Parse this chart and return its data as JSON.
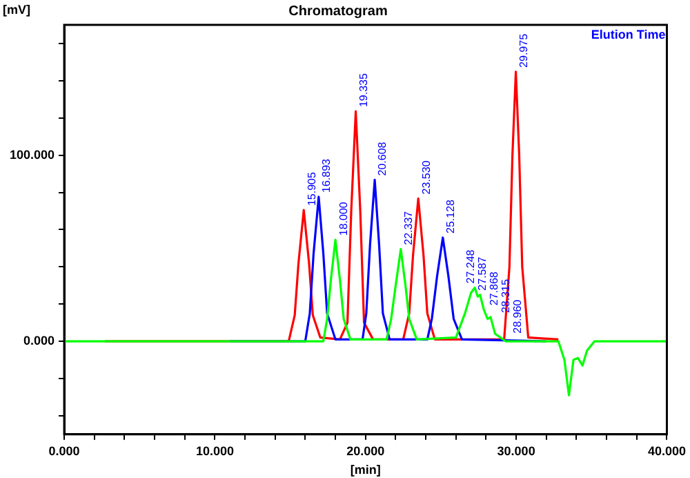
{
  "chart_data": {
    "type": "line",
    "title": "Chromatogram",
    "xlabel": "[min]",
    "ylabel": "[mV]",
    "xlim": [
      0,
      40
    ],
    "ylim": [
      -50,
      170
    ],
    "xticks": [
      {
        "value": 0,
        "label": "0.000"
      },
      {
        "value": 2,
        "label": null
      },
      {
        "value": 4,
        "label": null
      },
      {
        "value": 6,
        "label": null
      },
      {
        "value": 8,
        "label": null
      },
      {
        "value": 10,
        "label": "10.000"
      },
      {
        "value": 12,
        "label": null
      },
      {
        "value": 14,
        "label": null
      },
      {
        "value": 16,
        "label": null
      },
      {
        "value": 18,
        "label": null
      },
      {
        "value": 20,
        "label": "20.000"
      },
      {
        "value": 22,
        "label": null
      },
      {
        "value": 24,
        "label": null
      },
      {
        "value": 26,
        "label": null
      },
      {
        "value": 28,
        "label": null
      },
      {
        "value": 30,
        "label": "30.000"
      },
      {
        "value": 32,
        "label": null
      },
      {
        "value": 34,
        "label": null
      },
      {
        "value": 36,
        "label": null
      },
      {
        "value": 38,
        "label": null
      },
      {
        "value": 40,
        "label": "40.000"
      }
    ],
    "yticks": [
      {
        "value": -40,
        "label": null
      },
      {
        "value": -20,
        "label": null
      },
      {
        "value": 0,
        "label": "0.000"
      },
      {
        "value": 20,
        "label": null
      },
      {
        "value": 40,
        "label": null
      },
      {
        "value": 60,
        "label": null
      },
      {
        "value": 80,
        "label": null
      },
      {
        "value": 100,
        "label": "100.000"
      },
      {
        "value": 120,
        "label": null
      },
      {
        "value": 140,
        "label": null
      },
      {
        "value": 160,
        "label": null
      }
    ],
    "grid": false,
    "legend": false,
    "marker": "none",
    "line_style": "solid",
    "series": [
      {
        "color": "#ff0000",
        "x": [
          2.7,
          14.9,
          15.3,
          15.55,
          15.9,
          16.25,
          16.5,
          17,
          18.3,
          18.8,
          19.05,
          19.35,
          19.65,
          19.9,
          20.5,
          22.5,
          22.9,
          23.15,
          23.5,
          23.85,
          24.1,
          24.6,
          29.2,
          29.55,
          29.75,
          29.975,
          30.2,
          30.4,
          30.8,
          32.8
        ],
        "values": [
          0,
          0,
          14,
          42,
          70.5,
          42,
          14,
          2,
          1,
          10,
          70,
          123.6,
          70,
          10,
          1,
          1,
          15,
          46,
          76.7,
          46,
          15,
          1,
          1,
          40,
          100,
          144.8,
          100,
          40,
          2,
          1
        ]
      },
      {
        "color": "#0000ff",
        "x": [
          11,
          16,
          16.3,
          16.55,
          16.89,
          17.2,
          17.45,
          18,
          19.8,
          20.05,
          20.3,
          20.61,
          20.9,
          21.15,
          21.6,
          24.1,
          24.4,
          24.75,
          25.13,
          25.5,
          25.85,
          26.4,
          32
        ],
        "values": [
          0,
          0,
          15,
          47,
          77.6,
          47,
          15,
          1,
          1,
          15,
          52,
          86.7,
          52,
          15,
          1,
          1,
          12,
          35,
          55.7,
          35,
          12,
          1,
          0
        ]
      },
      {
        "color": "#00ff00",
        "x": [
          0,
          17.2,
          17.45,
          17.7,
          18,
          18.3,
          18.55,
          19,
          21.4,
          21.7,
          22,
          22.34,
          22.65,
          22.9,
          23.4,
          26,
          26.6,
          27,
          27.25,
          27.45,
          27.6,
          27.85,
          28.1,
          28.3,
          28.6,
          28.96,
          29.3,
          32.8,
          33.2,
          33.5,
          33.8,
          34.1,
          34.4,
          34.7,
          35.2,
          40
        ],
        "values": [
          0,
          0,
          12,
          33,
          54.5,
          33,
          12,
          1,
          1,
          12,
          30,
          49.5,
          30,
          12,
          1,
          2,
          15,
          26,
          28.8,
          24,
          25,
          17,
          12,
          13,
          4,
          2,
          0,
          0,
          -10,
          -29,
          -10,
          -9,
          -13,
          -5,
          0,
          0
        ]
      }
    ],
    "annotations": [
      "Elution Time",
      {
        "text": "15.905",
        "x": 15.9,
        "y": 70.5
      },
      {
        "text": "16.893",
        "x": 16.89,
        "y": 77.6
      },
      {
        "text": "18.000",
        "x": 18,
        "y": 54.5
      },
      {
        "text": "19.335",
        "x": 19.35,
        "y": 123.6
      },
      {
        "text": "20.608",
        "x": 20.61,
        "y": 86.7
      },
      {
        "text": "22.337",
        "x": 22.34,
        "y": 49.5
      },
      {
        "text": "23.530",
        "x": 23.5,
        "y": 76.7
      },
      {
        "text": "25.128",
        "x": 25.13,
        "y": 55.7
      },
      {
        "text": "27.248",
        "x": 27.25,
        "y": 28.8
      },
      {
        "text": "27.587",
        "x": 27.6,
        "y": 25
      },
      {
        "text": "27.868",
        "x": 27.85,
        "y": 17
      },
      {
        "text": "28.315",
        "x": 28.3,
        "y": 13
      },
      {
        "text": "28.960",
        "x": 28.96,
        "y": 2
      },
      {
        "text": "29.975",
        "x": 29.975,
        "y": 144.8
      }
    ]
  }
}
